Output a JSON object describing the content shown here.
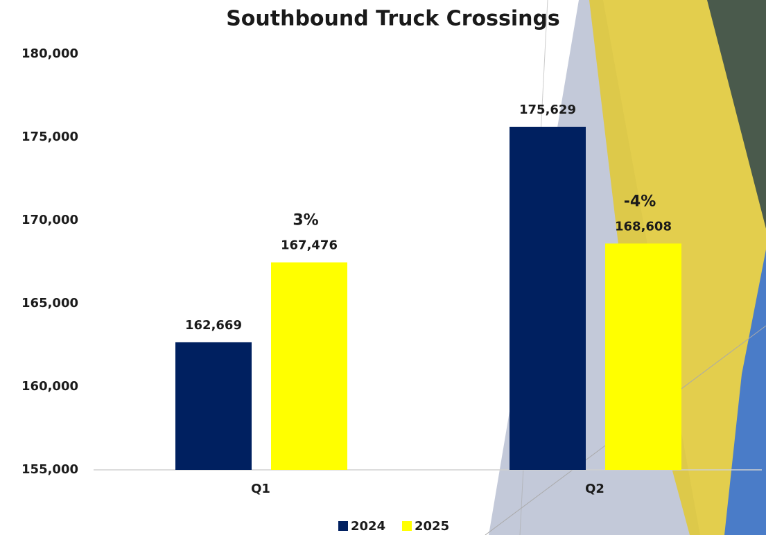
{
  "chart_data": {
    "type": "bar",
    "title": "Southbound Truck Crossings",
    "categories": [
      "Q1",
      "Q2"
    ],
    "series": [
      {
        "name": "2024",
        "color": "#002060",
        "values": [
          162669,
          175629
        ],
        "value_labels": [
          "162,669",
          "175,629"
        ]
      },
      {
        "name": "2025",
        "color": "#ffff00",
        "values": [
          167476,
          168608
        ],
        "value_labels": [
          "167,476",
          "168,608"
        ]
      }
    ],
    "annotations": [
      "3%",
      "-4%"
    ],
    "ylim": [
      155000,
      180000
    ],
    "yticks": [
      {
        "value": 155000,
        "label": "155,000"
      },
      {
        "value": 160000,
        "label": "160,000"
      },
      {
        "value": 165000,
        "label": "165,000"
      },
      {
        "value": 170000,
        "label": "170,000"
      },
      {
        "value": 175000,
        "label": "175,000"
      },
      {
        "value": 180000,
        "label": "180,000"
      }
    ],
    "grid": false,
    "legend": "bottom"
  }
}
